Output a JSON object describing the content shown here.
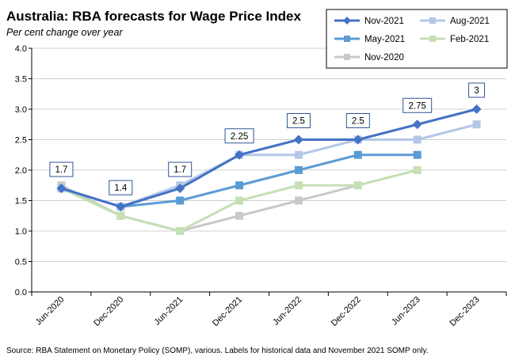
{
  "chart_data": {
    "type": "line",
    "title": "Australia: RBA forecasts for Wage Price Index",
    "subtitle": "Per cent change over year",
    "source": "Source: RBA Statement on Monetary Policy (SOMP), various. Labels for historical data and November 2021 SOMP only.",
    "categories": [
      "Jun-2020",
      "Dec-2020",
      "Jun-2021",
      "Dec-2021",
      "Jun-2022",
      "Dec-2022",
      "Jun-2023",
      "Dec-2023"
    ],
    "ylim": [
      0,
      4
    ],
    "yticks": [
      "0.0",
      "0.5",
      "1.0",
      "1.5",
      "2.0",
      "2.5",
      "3.0",
      "3.5",
      "4.0"
    ],
    "grid": true,
    "legend_position": "top-right",
    "series": [
      {
        "name": "Nov-2021",
        "color": "#4472c4",
        "marker": "diamond",
        "values": [
          1.7,
          1.4,
          1.7,
          2.25,
          2.5,
          2.5,
          2.75,
          3.0
        ]
      },
      {
        "name": "Aug-2021",
        "color": "#b4c7e7",
        "marker": "square",
        "values": [
          1.7,
          1.4,
          1.75,
          2.25,
          2.25,
          2.5,
          2.5,
          2.75
        ]
      },
      {
        "name": "May-2021",
        "color": "#5b9bd5",
        "marker": "square",
        "values": [
          1.7,
          1.4,
          1.5,
          1.75,
          2.0,
          2.25,
          2.25,
          null
        ]
      },
      {
        "name": "Feb-2021",
        "color": "#c5e0b4",
        "marker": "square",
        "values": [
          1.7,
          1.25,
          1.0,
          1.5,
          1.75,
          1.75,
          2.0,
          null
        ]
      },
      {
        "name": "Nov-2020",
        "color": "#c9c9c9",
        "marker": "square",
        "values": [
          1.75,
          1.25,
          1.0,
          1.25,
          1.5,
          1.75,
          null,
          null
        ]
      }
    ],
    "data_labels": [
      {
        "category_index": 0,
        "value": 1.7,
        "text": "1.7"
      },
      {
        "category_index": 1,
        "value": 1.4,
        "text": "1.4"
      },
      {
        "category_index": 2,
        "value": 1.7,
        "text": "1.7"
      },
      {
        "category_index": 3,
        "value": 2.25,
        "text": "2.25"
      },
      {
        "category_index": 4,
        "value": 2.5,
        "text": "2.5"
      },
      {
        "category_index": 5,
        "value": 2.5,
        "text": "2.5"
      },
      {
        "category_index": 6,
        "value": 2.75,
        "text": "2.75"
      },
      {
        "category_index": 7,
        "value": 3.0,
        "text": "3"
      }
    ]
  }
}
